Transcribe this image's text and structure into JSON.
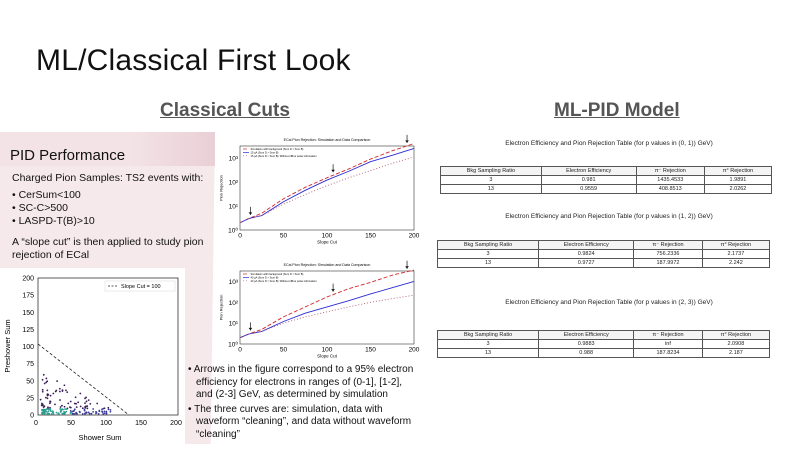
{
  "slide": {
    "title": "ML/Classical First Look"
  },
  "sections": {
    "classical": "Classical Cuts",
    "ml": "ML-PID Model"
  },
  "pid_panel": {
    "heading": "PID Performance",
    "subheading": "Charged Pion Samples: TS2 events with:",
    "bullets": [
      "CerSum<100",
      "SC-C>500",
      "LASPD-T(B)>10"
    ],
    "slope_text": "A “slope cut” is then applied to study pion rejection of ECal"
  },
  "scatter": {
    "ylabel": "Preshower Sum",
    "xlabel": "Shower Sum",
    "xticks": [
      "0",
      "50",
      "100",
      "150",
      "200"
    ],
    "yticks": [
      "0",
      "25",
      "50",
      "75",
      "100",
      "125",
      "150",
      "175",
      "200"
    ],
    "legend": "Slope Cut = 100"
  },
  "chart_data": [
    {
      "type": "line",
      "title": "ECal Pion Rejection: Simulation and Data Comparison",
      "xlabel": "Slope Cut",
      "ylabel": "Pion Rejection",
      "xticks": [
        "0",
        "50",
        "100",
        "150",
        "200"
      ],
      "yticks": [
        "10⁰",
        "10¹",
        "10²",
        "10³"
      ],
      "xlim": [
        0,
        200
      ],
      "ylim_log": [
        0,
        3.5
      ],
      "series": [
        {
          "name": "Simulation with background (Sum D > Sum B)",
          "color": "#d62728",
          "dash": "4,2",
          "x": [
            0,
            10,
            25,
            50,
            75,
            100,
            125,
            150,
            175,
            200
          ],
          "y": [
            2,
            3,
            5,
            20,
            60,
            150,
            350,
            900,
            2000,
            4000
          ]
        },
        {
          "name": "15 µA (Sum D > Sum B)",
          "color": "#2b2bd4",
          "dash": "",
          "x": [
            0,
            10,
            25,
            50,
            75,
            100,
            125,
            150,
            175,
            200
          ],
          "y": [
            2,
            3,
            4,
            15,
            45,
            120,
            280,
            700,
            1300,
            2500
          ]
        },
        {
          "name": "15 µA (Sum D > Sum B): Without offline pulse information",
          "color": "#b06070",
          "dash": "1,2",
          "x": [
            0,
            10,
            25,
            50,
            75,
            100,
            125,
            150,
            175,
            200
          ],
          "y": [
            2,
            3,
            4,
            12,
            30,
            70,
            150,
            300,
            600,
            1100
          ]
        }
      ]
    },
    {
      "type": "line",
      "title": "ECal Pion Rejection: Simulation and Data Comparison",
      "xlabel": "Slope Cut",
      "ylabel": "Pion Rejection",
      "xticks": [
        "0",
        "50",
        "100",
        "150",
        "200"
      ],
      "yticks": [
        "10⁰",
        "10¹",
        "10²",
        "10³"
      ],
      "xlim": [
        0,
        200
      ],
      "ylim_log": [
        0,
        3.5
      ],
      "series": [
        {
          "name": "Simulation with background (Sum D > Sum B)",
          "color": "#d62728",
          "dash": "4,2",
          "x": [
            0,
            10,
            25,
            50,
            75,
            100,
            125,
            150,
            175,
            200
          ],
          "y": [
            2,
            3,
            5,
            20,
            60,
            180,
            450,
            900,
            2000,
            3500
          ]
        },
        {
          "name": "40 µA (Sum D > Sum B)",
          "color": "#2b2bd4",
          "dash": "",
          "x": [
            0,
            10,
            25,
            50,
            75,
            100,
            125,
            150,
            175,
            200
          ],
          "y": [
            2,
            3,
            4,
            12,
            30,
            60,
            120,
            250,
            500,
            1000
          ]
        },
        {
          "name": "40 µA (Sum D > Sum B): Without offline pulse information",
          "color": "#b06070",
          "dash": "1,2",
          "x": [
            0,
            10,
            25,
            50,
            75,
            100,
            125,
            150,
            175,
            200
          ],
          "y": [
            2,
            3,
            4,
            10,
            20,
            35,
            60,
            100,
            150,
            220
          ]
        }
      ]
    }
  ],
  "notes": [
    "Arrows in the figure correspond to a 95% electron efficiency for electrons in ranges of (0-1], [1-2], and (2-3] GeV, as determined by simulation",
    "The three curves are: simulation, data with waveform “cleaning”, and data without waveform “cleaning”"
  ],
  "tables": [
    {
      "caption": "Electron Efficiency and Pion Rejection Table (for p values in (0, 1)) GeV)",
      "headers": [
        "Bkg Sampling Ratio",
        "Electron Efficiency",
        "π⁻ Rejection",
        "π° Rejection"
      ],
      "rows": [
        [
          "3",
          "0.981",
          "1435.4533",
          "1.9891"
        ],
        [
          "13",
          "0.9559",
          "408.8513",
          "2.0262"
        ]
      ]
    },
    {
      "caption": "Electron Efficiency and Pion Rejection Table (for p values in (1, 2)) GeV)",
      "headers": [
        "Bkg Sampling Ratio",
        "Electron Efficiency",
        "π⁻ Rejection",
        "π° Rejection"
      ],
      "rows": [
        [
          "3",
          "0.9824",
          "756.2336",
          "2.1737"
        ],
        [
          "13",
          "0.9727",
          "187.9972",
          "2.242"
        ]
      ]
    },
    {
      "caption": "Electron Efficiency and Pion Rejection Table (for p values in (2, 3)) GeV)",
      "headers": [
        "Bkg Sampling Ratio",
        "Electron Efficiency",
        "π⁻ Rejection",
        "π° Rejection"
      ],
      "rows": [
        [
          "3",
          "0.9883",
          "inf",
          "2.0908"
        ],
        [
          "13",
          "0.988",
          "187.8234",
          "2.187"
        ]
      ]
    }
  ]
}
